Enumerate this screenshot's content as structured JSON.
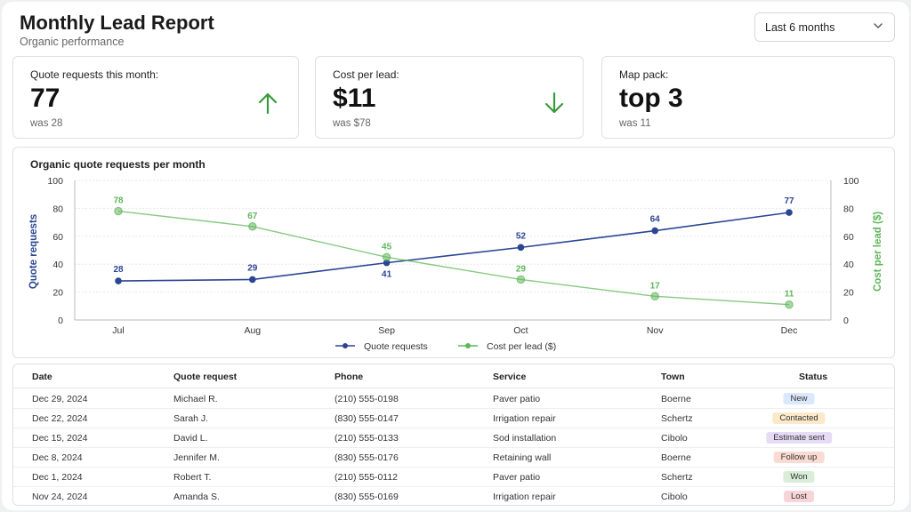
{
  "header": {
    "title": "Monthly Lead Report",
    "subtitle": "Organic performance",
    "range_select": "Last 6 months"
  },
  "cards": [
    {
      "label": "Quote requests this month:",
      "value": "77",
      "previous": "was 28",
      "trend": "up",
      "trend_color": "#3a9a3a"
    },
    {
      "label": "Cost per lead:",
      "value": "$11",
      "previous": "was $78",
      "trend": "down",
      "trend_color": "#3a9a3a"
    },
    {
      "label": "Map pack:",
      "value": "top 3",
      "previous": "was 11",
      "trend": "none"
    }
  ],
  "chart_data": {
    "type": "line",
    "title": "Organic quote requests per month",
    "categories": [
      "Jul",
      "Aug",
      "Sep",
      "Oct",
      "Nov",
      "Dec"
    ],
    "series": [
      {
        "name": "Quote requests",
        "values": [
          28,
          29,
          41,
          52,
          64,
          77
        ],
        "color": "#2b4593",
        "axis": "left"
      },
      {
        "name": "Cost per lead ($)",
        "values": [
          78,
          67,
          45,
          29,
          17,
          11
        ],
        "color": "#5fb65a",
        "axis": "right"
      }
    ],
    "ylabel_left": "Quote requests",
    "ylabel_right": "Cost per lead ($)",
    "ylim": [
      0,
      100
    ],
    "yticks": [
      0,
      20,
      40,
      60,
      80,
      100
    ],
    "grid": true,
    "legend": "bottom-center"
  },
  "table": {
    "headers": [
      "Date",
      "Quote request",
      "Phone",
      "Service",
      "Town",
      "Status"
    ],
    "rows": [
      {
        "date": "Dec 29, 2024",
        "name": "Michael R.",
        "phone": "(210) 555-0198",
        "service": "Paver patio",
        "town": "Boerne",
        "status": "New"
      },
      {
        "date": "Dec 22, 2024",
        "name": "Sarah J.",
        "phone": "(830) 555-0147",
        "service": "Irrigation repair",
        "town": "Schertz",
        "status": "Contacted"
      },
      {
        "date": "Dec 15, 2024",
        "name": "David L.",
        "phone": "(210) 555-0133",
        "service": "Sod installation",
        "town": "Cibolo",
        "status": "Estimate sent"
      },
      {
        "date": "Dec 8, 2024",
        "name": "Jennifer M.",
        "phone": "(830) 555-0176",
        "service": "Retaining wall",
        "town": "Boerne",
        "status": "Follow up"
      },
      {
        "date": "Dec 1, 2024",
        "name": "Robert T.",
        "phone": "(210) 555-0112",
        "service": "Paver patio",
        "town": "Schertz",
        "status": "Won"
      },
      {
        "date": "Nov 24, 2024",
        "name": "Amanda S.",
        "phone": "(830) 555-0169",
        "service": "Irrigation repair",
        "town": "Cibolo",
        "status": "Lost"
      }
    ],
    "status_colors": {
      "New": "#dbe8fb",
      "Contacted": "#fbe9c9",
      "Estimate sent": "#e6dcf6",
      "Follow up": "#fadbd2",
      "Won": "#d8eed8",
      "Lost": "#f8d4d6"
    }
  }
}
